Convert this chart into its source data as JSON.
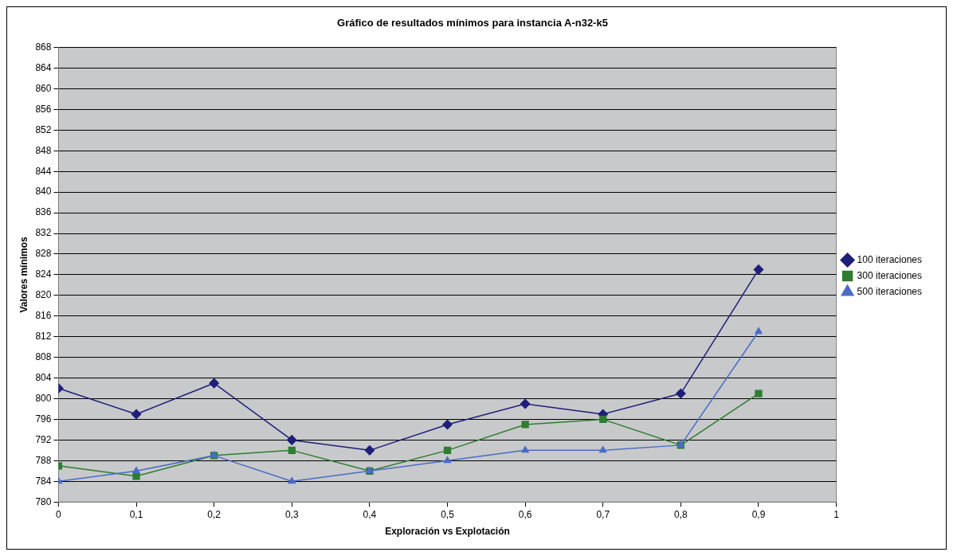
{
  "chart_data": {
    "type": "line",
    "title": "Gráfico de resultados mínimos para instancia A-n32-k5",
    "xlabel": "Exploración vs Explotación",
    "ylabel": "Valores mínimos",
    "x": [
      0,
      0.1,
      0.2,
      0.3,
      0.4,
      0.5,
      0.6,
      0.7,
      0.8,
      0.9
    ],
    "series": [
      {
        "name": "100 iteraciones",
        "color": "#1f1f7a",
        "marker": "diamond",
        "values": [
          802,
          797,
          803,
          792,
          790,
          795,
          799,
          797,
          801,
          825
        ]
      },
      {
        "name": "300 iteraciones",
        "color": "#2e7d32",
        "marker": "square",
        "values": [
          787,
          785,
          789,
          790,
          786,
          790,
          795,
          796,
          791,
          801
        ]
      },
      {
        "name": "500 iteraciones",
        "color": "#4a6cc8",
        "marker": "triangle",
        "values": [
          784,
          786,
          789,
          784,
          786,
          788,
          790,
          790,
          791,
          813
        ]
      }
    ],
    "xlim": [
      0,
      1
    ],
    "xticks": [
      0,
      {
        "value": 0.1,
        "label": "0,1"
      },
      {
        "value": 0.2,
        "label": "0,2"
      },
      {
        "value": 0.3,
        "label": "0,3"
      },
      {
        "value": 0.4,
        "label": "0,4"
      },
      {
        "value": 0.5,
        "label": "0,5"
      },
      {
        "value": 0.6,
        "label": "0,6"
      },
      {
        "value": 0.7,
        "label": "0,7"
      },
      {
        "value": 0.8,
        "label": "0,8"
      },
      {
        "value": 0.9,
        "label": "0,9"
      },
      1
    ],
    "ylim": [
      780,
      868
    ],
    "yticks": [
      780,
      784,
      788,
      792,
      796,
      800,
      804,
      808,
      812,
      816,
      820,
      824,
      828,
      832,
      836,
      840,
      844,
      848,
      852,
      856,
      860,
      864,
      868
    ],
    "grid": "y",
    "legend": "right",
    "line_style": "solid"
  }
}
